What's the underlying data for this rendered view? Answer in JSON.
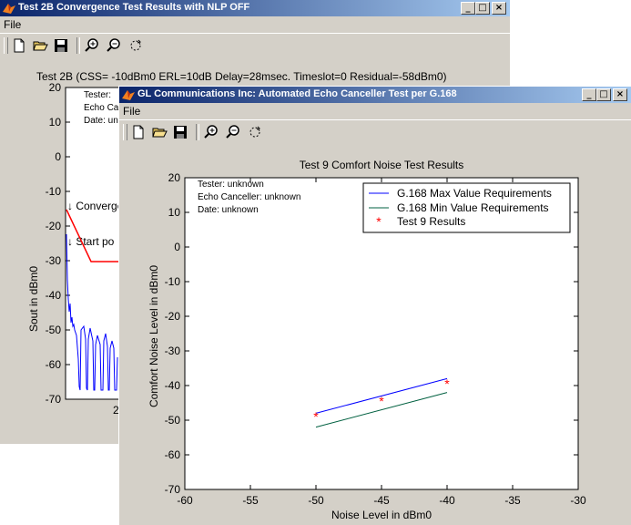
{
  "window1": {
    "title": "Test 2B Convergence Test Results with NLP OFF",
    "menu_file": "File",
    "plot_title": "Test 2B (CSS= -10dBm0 ERL=10dB Delay=28msec. Timeslot=0 Residual=-58dBm0)",
    "info_tester": "Tester:",
    "info_echo": "Echo Ca",
    "info_date": "Date: un",
    "ylabel": "Sout in dBm0",
    "ytick_labels": [
      "20",
      "10",
      "0",
      "-10",
      "-20",
      "-30",
      "-40",
      "-50",
      "-60",
      "-70"
    ],
    "x_partial_label": "2",
    "annot_converge": "↓ Converge",
    "annot_start": "↓ Start po"
  },
  "window2": {
    "title": "GL Communications Inc:  Automated Echo Canceller Test per G.168",
    "menu_file": "File",
    "info_tester": "Tester: unknown",
    "info_echo": "Echo Canceller: unknown",
    "info_date": "Date: unknown"
  },
  "colors": {
    "max_line": "#0000ff",
    "min_line": "#006040",
    "results": "#ff0000",
    "w1_trace": "#0000ff",
    "w1_limit": "#ff0000"
  },
  "icons": [
    "new-file-icon",
    "open-folder-icon",
    "save-icon",
    "zoom-in-icon",
    "zoom-out-icon",
    "rotate-icon"
  ],
  "chart_data": {
    "type": "line",
    "title": "Test 9 Comfort Noise Test Results",
    "xlabel": "Noise Level in dBm0",
    "ylabel": "Comfort Noise Level in dBm0",
    "xlim": [
      -60,
      -30
    ],
    "ylim": [
      -70,
      20
    ],
    "xticks": [
      -60,
      -55,
      -50,
      -45,
      -40,
      -35,
      -30
    ],
    "yticks": [
      20,
      10,
      0,
      -10,
      -20,
      -30,
      -40,
      -50,
      -60,
      -70
    ],
    "legend_position": "top-right",
    "grid": false,
    "series": [
      {
        "name": "G.168 Max Value Requirements",
        "type": "line",
        "x": [
          -50,
          -40
        ],
        "y": [
          -48,
          -38
        ]
      },
      {
        "name": "G.168 Min Value Requirements",
        "type": "line",
        "x": [
          -50,
          -40
        ],
        "y": [
          -52,
          -42
        ]
      },
      {
        "name": "Test 9 Results",
        "type": "scatter",
        "x": [
          -50,
          -45,
          -40
        ],
        "y": [
          -49,
          -44.5,
          -39.5
        ]
      }
    ]
  }
}
